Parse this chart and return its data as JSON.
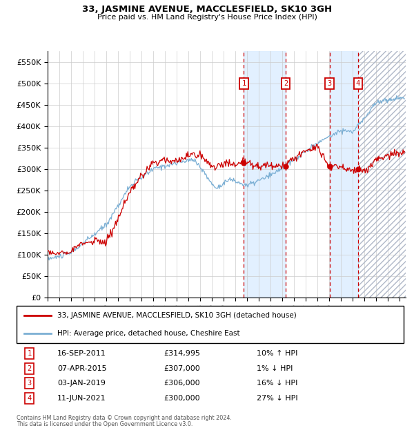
{
  "title": "33, JASMINE AVENUE, MACCLESFIELD, SK10 3GH",
  "subtitle": "Price paid vs. HM Land Registry's House Price Index (HPI)",
  "legend_house": "33, JASMINE AVENUE, MACCLESFIELD, SK10 3GH (detached house)",
  "legend_hpi": "HPI: Average price, detached house, Cheshire East",
  "footnote1": "Contains HM Land Registry data © Crown copyright and database right 2024.",
  "footnote2": "This data is licensed under the Open Government Licence v3.0.",
  "transactions": [
    {
      "num": 1,
      "date": "16-SEP-2011",
      "price": 314995,
      "hpi_label": "10% ↑ HPI",
      "year": 2011.71
    },
    {
      "num": 2,
      "date": "07-APR-2015",
      "price": 307000,
      "hpi_label": "1% ↓ HPI",
      "year": 2015.27
    },
    {
      "num": 3,
      "date": "03-JAN-2019",
      "price": 306000,
      "hpi_label": "16% ↓ HPI",
      "year": 2019.01
    },
    {
      "num": 4,
      "date": "11-JUN-2021",
      "price": 300000,
      "hpi_label": "27% ↓ HPI",
      "year": 2021.44
    }
  ],
  "ylim": [
    0,
    575000
  ],
  "xlim_start": 1995.0,
  "xlim_end": 2025.5,
  "yticks": [
    0,
    50000,
    100000,
    150000,
    200000,
    250000,
    300000,
    350000,
    400000,
    450000,
    500000,
    550000
  ],
  "ytick_labels": [
    "£0",
    "£50K",
    "£100K",
    "£150K",
    "£200K",
    "£250K",
    "£300K",
    "£350K",
    "£400K",
    "£450K",
    "£500K",
    "£550K"
  ],
  "red_color": "#cc0000",
  "blue_color": "#7bafd4",
  "blue_fill": "#ddeeff",
  "hatch_color": "#b0b8c8"
}
